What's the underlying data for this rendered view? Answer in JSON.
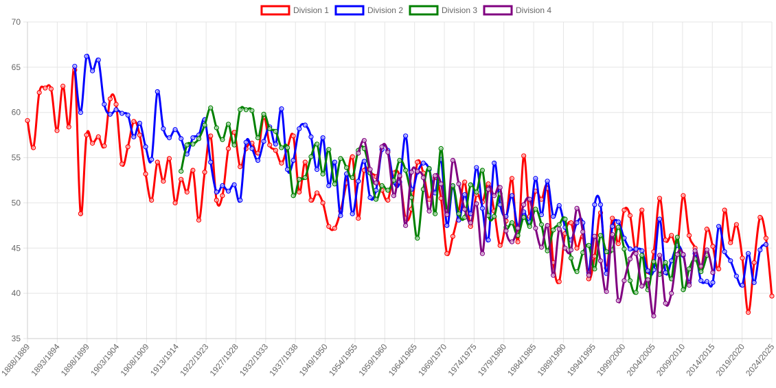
{
  "chart_data": {
    "type": "line",
    "title": "",
    "xlabel": "",
    "ylabel": "",
    "ylim": [
      35,
      70
    ],
    "y_ticks": [
      35,
      40,
      45,
      50,
      55,
      60,
      65,
      70
    ],
    "grid": true,
    "legend_position": "top-center",
    "x_tick_labels": [
      "1888/1889",
      "1893/1894",
      "1898/1899",
      "1903/1904",
      "1908/1909",
      "1913/1914",
      "1922/1923",
      "1927/1928",
      "1932/1933",
      "1937/1938",
      "1949/1950",
      "1954/1955",
      "1959/1960",
      "1964/1965",
      "1969/1970",
      "1974/1975",
      "1979/1980",
      "1984/1985",
      "1989/1990",
      "1994/1995",
      "1999/2000",
      "2004/2005",
      "2009/2010",
      "2014/2015",
      "2019/2020",
      "2024/2025"
    ],
    "series": [
      {
        "name": "Division 1",
        "color": "#ff0000",
        "start_index": 0,
        "values": [
          59.1,
          56.1,
          62.2,
          62.7,
          62.6,
          58.0,
          62.9,
          58.4,
          64.7,
          48.8,
          57.5,
          56.6,
          57.3,
          56.3,
          61.5,
          60.9,
          54.3,
          56.2,
          59.0,
          57.5,
          53.2,
          50.3,
          54.5,
          52.4,
          54.9,
          50.0,
          52.6,
          51.2,
          53.6,
          48.1,
          53.4,
          57.4,
          50.3,
          50.8,
          56.0,
          57.8,
          54.0,
          56.0,
          56.6,
          55.5,
          59.5,
          56.4,
          55.8,
          54.4,
          56.1,
          57.4,
          51.2,
          54.5,
          50.3,
          51.1,
          50.0,
          47.4,
          47.2,
          49.1,
          52.2,
          55.1,
          48.3,
          53.6,
          53.3,
          52.9,
          51.4,
          50.3,
          53.3,
          52.9,
          48.3,
          49.3,
          54.5,
          53.3,
          50.4,
          52.8,
          50.5,
          44.4,
          46.3,
          49.0,
          52.3,
          47.4,
          50.9,
          50.1,
          52.1,
          49.1,
          45.3,
          48.0,
          52.7,
          45.7,
          55.2,
          48.5,
          51.3,
          50.4,
          51.6,
          43.4,
          41.3,
          46.6,
          47.8,
          45.0,
          46.3,
          41.6,
          44.1,
          48.9,
          42.8,
          48.3,
          45.5,
          49.2,
          48.6,
          44.7,
          49.2,
          42.4,
          44.6,
          50.5,
          45.9,
          46.4,
          45.4,
          50.8,
          46.4,
          45.0,
          42.6,
          47.1,
          45.2,
          42.7,
          49.2,
          45.6,
          47.6,
          43.9,
          37.9,
          43.4,
          48.4,
          46.1,
          39.7
        ]
      },
      {
        "name": "Division 2",
        "color": "#0000ff",
        "start_index": 8,
        "values": [
          65.1,
          60.0,
          66.2,
          64.6,
          65.8,
          60.9,
          59.8,
          60.3,
          59.9,
          59.7,
          57.3,
          58.8,
          56.2,
          54.8,
          62.3,
          58.2,
          57.2,
          58.1,
          57.1,
          55.4,
          57.2,
          57.5,
          59.2,
          54.5,
          51.2,
          51.9,
          51.3,
          52.0,
          50.3,
          56.7,
          56.0,
          54.7,
          56.8,
          58.4,
          56.5,
          60.4,
          53.7,
          54.7,
          58.2,
          58.6,
          57.3,
          53.7,
          57.2,
          51.9,
          54.5,
          48.6,
          53.2,
          48.8,
          52.4,
          54.6,
          50.6,
          51.4,
          55.9,
          55.8,
          52.3,
          52.3,
          57.4,
          51.5,
          53.4,
          54.4,
          53.7,
          51.1,
          54.8,
          47.5,
          51.8,
          48.1,
          50.9,
          48.8,
          53.9,
          49.4,
          45.9,
          54.4,
          49.8,
          48.5,
          50.8,
          47.3,
          49.0,
          47.9,
          52.7,
          48.7,
          52.4,
          48.5,
          49.7,
          47.3,
          45.9,
          47.8,
          47.8,
          42.3,
          49.8,
          49.8,
          42.2,
          47.4,
          47.9,
          46.1,
          44.9,
          44.9,
          44.7,
          42.5,
          42.6,
          48.2,
          42.3,
          43.6,
          45.3,
          44.2,
          41.2,
          44.4,
          41.4,
          41.3,
          41.2,
          47.4,
          44.6,
          43.6,
          41.9,
          40.9,
          44.4,
          41.2,
          44.8,
          45.4
        ]
      },
      {
        "name": "Division 3",
        "color": "#008000",
        "start_index": 26,
        "values": [
          53.5,
          56.4,
          56.5,
          57.1,
          58.6,
          60.5,
          58.3,
          57.0,
          58.7,
          56.4,
          60.3,
          60.3,
          60.2,
          57.2,
          59.8,
          58.2,
          57.9,
          56.1,
          56.1,
          50.8,
          52.6,
          52.8,
          55.1,
          56.5,
          53.2,
          55.9,
          52.1,
          54.9,
          53.9,
          52.8,
          55.8,
          56.0,
          53.3,
          50.4,
          51.9,
          51.4,
          52.5,
          54.7,
          53.6,
          50.6,
          46.1,
          51.5,
          53.8,
          48.8,
          56.0,
          49.1,
          51.9,
          48.8,
          48.4,
          52.0,
          51.2,
          53.6,
          48.6,
          48.5,
          51.0,
          47.3,
          47.8,
          46.4,
          48.4,
          47.4,
          49.3,
          47.6,
          44.7,
          47.0,
          47.6,
          48.2,
          43.9,
          42.4,
          44.5,
          45.3,
          42.7,
          46.4,
          44.6,
          44.8,
          47.3,
          44.9,
          41.4,
          40.1,
          44.2,
          40.4,
          43.5,
          42.1,
          43.4,
          41.6,
          46.2,
          40.4,
          42.7,
          43.8,
          42.4,
          44.2
        ]
      },
      {
        "name": "Division 4",
        "color": "#800080",
        "start_index": 56,
        "values": [
          55.5,
          56.9,
          53.7,
          52.2,
          56.2,
          55.6,
          50.8,
          53.0,
          47.5,
          53.4,
          53.5,
          52.8,
          49.1,
          53.0,
          52.1,
          48.7,
          54.7,
          52.1,
          49.3,
          47.8,
          49.9,
          44.4,
          51.5,
          50.8,
          51.7,
          46.9,
          45.7,
          47.2,
          49.8,
          50.4,
          47.2,
          45.1,
          47.5,
          42.0,
          47.1,
          45.0,
          44.8,
          49.4,
          46.8,
          42.0,
          46.3,
          43.6,
          40.2,
          46.5,
          39.2,
          41.4,
          43.8,
          44.4,
          40.8,
          41.5,
          37.5,
          44.2,
          38.9,
          40.0,
          44.3,
          44.3,
          40.9,
          44.7,
          43.0,
          44.8,
          42.3
        ]
      }
    ]
  }
}
